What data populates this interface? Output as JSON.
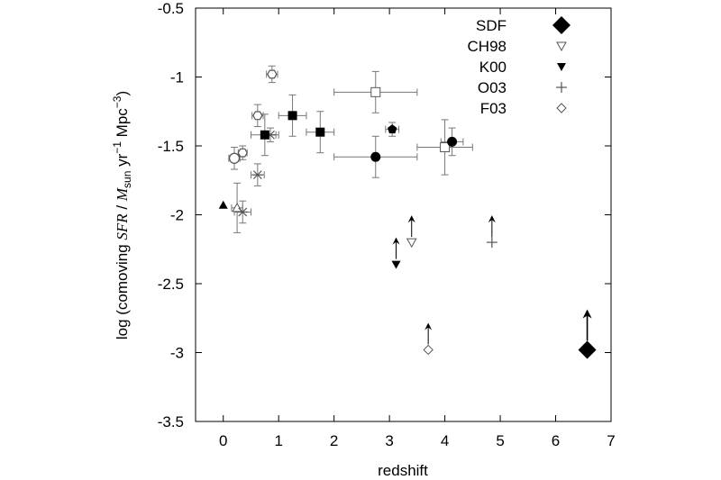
{
  "chart_data": {
    "type": "scatter",
    "xlabel": "redshift",
    "ylabel_parts": {
      "prefix": "log (comoving ",
      "sfr": "SFR",
      "sep": " / ",
      "m": "M",
      "sun": "sun",
      "unit1": " yr",
      "exp1": "−1",
      "unit2": " Mpc",
      "exp2": "−3",
      "close": ")"
    },
    "xlim": [
      -0.5,
      7
    ],
    "ylim": [
      -3.5,
      -0.5
    ],
    "xticks": [
      0,
      1,
      2,
      3,
      4,
      5,
      6,
      7
    ],
    "xtick_labels": [
      "0",
      "1",
      "2",
      "3",
      "4",
      "5",
      "6",
      "7"
    ],
    "yticks": [
      -0.5,
      -1,
      -1.5,
      -2,
      -2.5,
      -3,
      -3.5
    ],
    "ytick_labels": [
      "-0.5",
      "-1",
      "-1.5",
      "-2",
      "-2.5",
      "-3",
      "-3.5"
    ],
    "grid": false,
    "legend_position": "top-right",
    "legend": [
      {
        "label": "SDF",
        "marker": "diamond-filled-large"
      },
      {
        "label": "CH98",
        "marker": "triangle-down-open"
      },
      {
        "label": "K00",
        "marker": "triangle-down-filled"
      },
      {
        "label": "O03",
        "marker": "plus"
      },
      {
        "label": "F03",
        "marker": "diamond-open"
      }
    ],
    "points": [
      {
        "marker": "triangle-up-filled",
        "x": 0.0,
        "y": -1.93
      },
      {
        "marker": "triangle-up-open",
        "x": 0.25,
        "y": -1.95,
        "xerr": 0.1,
        "yerr": 0.18
      },
      {
        "marker": "asterisk",
        "x": 0.35,
        "y": -1.98,
        "xerr": 0.15,
        "yerr": 0.08
      },
      {
        "marker": "asterisk",
        "x": 0.62,
        "y": -1.71,
        "xerr": 0.12,
        "yerr": 0.08
      },
      {
        "marker": "circle-open",
        "x": 0.2,
        "y": -1.59,
        "xerr": 0.1,
        "yerr": 0.08
      },
      {
        "marker": "hexagon-open",
        "x": 0.35,
        "y": -1.55,
        "xerr": 0.08,
        "yerr": 0.05
      },
      {
        "marker": "hexagon-open",
        "x": 0.62,
        "y": -1.28,
        "xerr": 0.1,
        "yerr": 0.08
      },
      {
        "marker": "asterisk",
        "x": 0.85,
        "y": -1.42,
        "xerr": 0.1,
        "yerr": 0.05
      },
      {
        "marker": "square-filled",
        "x": 0.75,
        "y": -1.42,
        "xerr": 0.25,
        "yerr": 0.15
      },
      {
        "marker": "hexagon-open",
        "x": 0.88,
        "y": -0.98,
        "xerr": 0.1,
        "yerr": 0.06
      },
      {
        "marker": "square-filled",
        "x": 1.25,
        "y": -1.28,
        "xerr": 0.25,
        "yerr": 0.15
      },
      {
        "marker": "square-filled",
        "x": 1.75,
        "y": -1.4,
        "xerr": 0.25,
        "yerr": 0.15
      },
      {
        "marker": "circle-filled",
        "x": 2.75,
        "y": -1.58,
        "xerr": 0.75,
        "yerr": 0.15
      },
      {
        "marker": "square-open",
        "x": 2.75,
        "y": -1.11,
        "xerr": 0.75,
        "yerr": 0.15
      },
      {
        "marker": "pentagon-filled",
        "x": 3.05,
        "y": -1.38,
        "xerr": 0.12,
        "yerr": 0.05
      },
      {
        "marker": "square-open",
        "x": 4.0,
        "y": -1.51,
        "xerr": 0.5,
        "yerr": 0.2
      },
      {
        "marker": "circle-filled",
        "x": 4.13,
        "y": -1.47,
        "xerr": 0.2,
        "yerr": 0.1
      },
      {
        "marker": "triangle-down-filled",
        "x": 3.12,
        "y": -2.36,
        "lower_limit": true
      },
      {
        "marker": "triangle-down-open",
        "x": 3.4,
        "y": -2.2,
        "lower_limit": true
      },
      {
        "marker": "plus",
        "x": 4.85,
        "y": -2.2,
        "lower_limit": true
      },
      {
        "marker": "diamond-open",
        "x": 3.7,
        "y": -2.98,
        "lower_limit": true
      },
      {
        "marker": "diamond-filled-large",
        "x": 6.57,
        "y": -2.98,
        "lower_limit": true
      }
    ]
  }
}
